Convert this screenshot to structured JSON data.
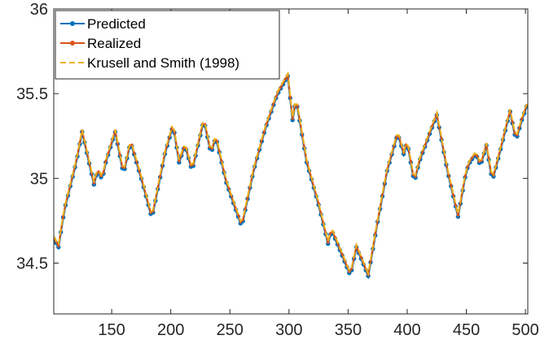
{
  "chart_data": {
    "type": "line",
    "title": "",
    "xlabel": "",
    "ylabel": "",
    "xlim": [
      101,
      502
    ],
    "ylim": [
      34.2,
      36.0
    ],
    "xticks": [
      150,
      200,
      250,
      300,
      350,
      400,
      450,
      500
    ],
    "yticks": [
      34.5,
      35,
      35.5,
      36
    ],
    "ytick_labels": [
      "34.5",
      "35",
      "35.5",
      "36"
    ],
    "grid": false,
    "legend_position": "top-left",
    "series": [
      {
        "name": "Predicted",
        "color": "#0072BD",
        "style": "solid",
        "marker": "dot"
      },
      {
        "name": "Realized",
        "color": "#D95319",
        "style": "solid",
        "marker": "dot"
      },
      {
        "name": "Krusell and Smith (1998)",
        "color": "#EDB120",
        "style": "dashed",
        "marker": "none"
      }
    ],
    "x_step": 2,
    "keypoints": [
      [
        101,
        34.65
      ],
      [
        105,
        34.6
      ],
      [
        110,
        34.82
      ],
      [
        120,
        35.1
      ],
      [
        125,
        35.28
      ],
      [
        135,
        34.97
      ],
      [
        138,
        35.05
      ],
      [
        142,
        35.0
      ],
      [
        145,
        35.1
      ],
      [
        153,
        35.28
      ],
      [
        160,
        35.03
      ],
      [
        166,
        35.22
      ],
      [
        176,
        34.98
      ],
      [
        184,
        34.77
      ],
      [
        195,
        35.15
      ],
      [
        202,
        35.32
      ],
      [
        207,
        35.1
      ],
      [
        212,
        35.2
      ],
      [
        218,
        35.05
      ],
      [
        228,
        35.35
      ],
      [
        234,
        35.15
      ],
      [
        238,
        35.25
      ],
      [
        247,
        34.98
      ],
      [
        252,
        34.88
      ],
      [
        260,
        34.72
      ],
      [
        270,
        35.05
      ],
      [
        280,
        35.3
      ],
      [
        290,
        35.5
      ],
      [
        299,
        35.61
      ],
      [
        303,
        35.35
      ],
      [
        306,
        35.47
      ],
      [
        315,
        35.1
      ],
      [
        325,
        34.85
      ],
      [
        333,
        34.62
      ],
      [
        336,
        34.7
      ],
      [
        345,
        34.55
      ],
      [
        352,
        34.43
      ],
      [
        357,
        34.6
      ],
      [
        367,
        34.43
      ],
      [
        375,
        34.75
      ],
      [
        383,
        35.05
      ],
      [
        392,
        35.27
      ],
      [
        397,
        35.15
      ],
      [
        400,
        35.22
      ],
      [
        406,
        34.98
      ],
      [
        410,
        35.1
      ],
      [
        418,
        35.25
      ],
      [
        425,
        35.38
      ],
      [
        434,
        35.05
      ],
      [
        443,
        34.78
      ],
      [
        450,
        35.05
      ],
      [
        453,
        35.1
      ],
      [
        458,
        35.15
      ],
      [
        462,
        35.08
      ],
      [
        467,
        35.2
      ],
      [
        472,
        34.99
      ],
      [
        478,
        35.15
      ],
      [
        487,
        35.4
      ],
      [
        492,
        35.23
      ],
      [
        497,
        35.35
      ],
      [
        502,
        35.45
      ]
    ]
  }
}
